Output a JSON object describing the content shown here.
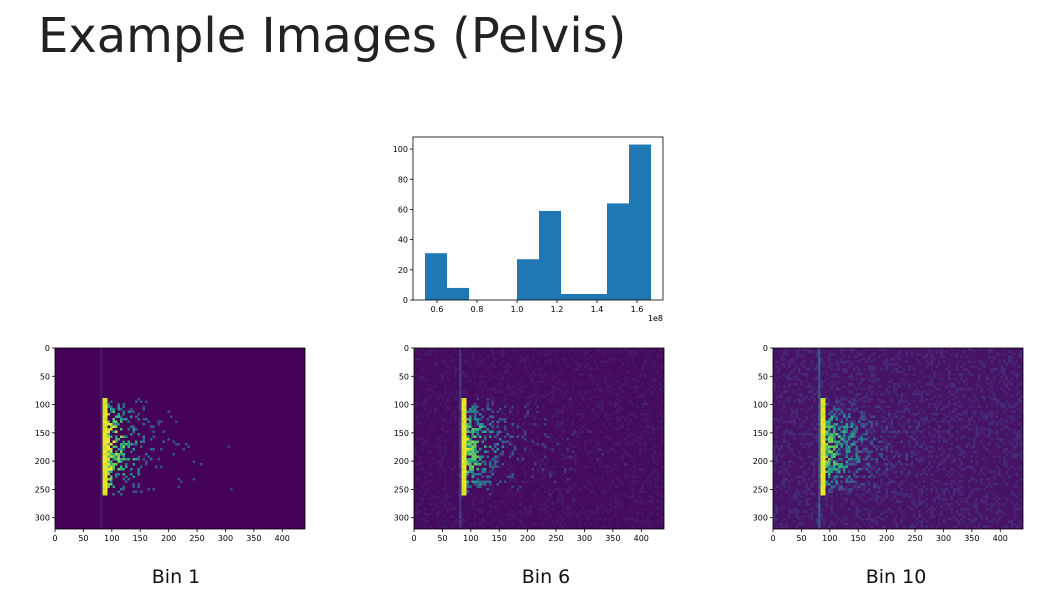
{
  "slide": {
    "title": "Example Images (Pelvis)"
  },
  "colors": {
    "bar": "#1f77b4",
    "heat_bg_1": "#440154",
    "heat_bg_2": "#46095e",
    "heat_bg_3": "#48126a",
    "heat_mid": "#21918c",
    "heat_hi": "#5ec962",
    "heat_peak": "#fde725"
  },
  "chart_data": [
    {
      "type": "bar",
      "title": "",
      "xlabel": "",
      "ylabel": "",
      "x_offset_label": "1e8",
      "x_bin_edges": [
        0.54,
        0.6,
        0.67,
        0.74,
        0.81,
        0.88,
        0.99,
        1.1,
        1.22,
        1.45,
        1.56,
        1.67
      ],
      "bin_left": [
        0.54,
        0.65,
        1.0,
        1.11,
        1.22,
        1.45,
        1.56
      ],
      "bin_right": [
        0.65,
        0.76,
        1.11,
        1.22,
        1.45,
        1.56,
        1.67
      ],
      "values": [
        31,
        8,
        27,
        59,
        4,
        64,
        103
      ],
      "xticks": [
        "0.6",
        "0.8",
        "1.0",
        "1.2",
        "1.4",
        "1.6"
      ],
      "xtick_values": [
        0.6,
        0.8,
        1.0,
        1.2,
        1.4,
        1.6
      ],
      "yticks": [
        "0",
        "20",
        "40",
        "60",
        "80",
        "100"
      ],
      "ytick_values": [
        0,
        20,
        40,
        60,
        80,
        100
      ],
      "xlim": [
        0.48,
        1.73
      ],
      "ylim": [
        0,
        108
      ],
      "grid": false
    },
    {
      "type": "heatmap",
      "caption": "Bin 1",
      "xticks": [
        "0",
        "50",
        "100",
        "150",
        "200",
        "250",
        "300",
        "350",
        "400"
      ],
      "xtick_values": [
        0,
        50,
        100,
        150,
        200,
        250,
        300,
        350,
        400
      ],
      "yticks": [
        "0",
        "50",
        "100",
        "150",
        "200",
        "250",
        "300"
      ],
      "ytick_values": [
        0,
        50,
        100,
        150,
        200,
        250,
        300
      ],
      "xlim": [
        0,
        440
      ],
      "ylim": [
        320,
        0
      ],
      "noise_level": 0.03,
      "spread": 0.6,
      "intensity": 1.0
    },
    {
      "type": "heatmap",
      "caption": "Bin 6",
      "xticks": [
        "0",
        "50",
        "100",
        "150",
        "200",
        "250",
        "300",
        "350",
        "400"
      ],
      "xtick_values": [
        0,
        50,
        100,
        150,
        200,
        250,
        300,
        350,
        400
      ],
      "yticks": [
        "0",
        "50",
        "100",
        "150",
        "200",
        "250",
        "300"
      ],
      "ytick_values": [
        0,
        50,
        100,
        150,
        200,
        250,
        300
      ],
      "xlim": [
        0,
        440
      ],
      "ylim": [
        320,
        0
      ],
      "noise_level": 0.16,
      "spread": 0.8,
      "intensity": 0.7
    },
    {
      "type": "heatmap",
      "caption": "Bin 10",
      "xticks": [
        "0",
        "50",
        "100",
        "150",
        "200",
        "250",
        "300",
        "350",
        "400"
      ],
      "xtick_values": [
        0,
        50,
        100,
        150,
        200,
        250,
        300,
        350,
        400
      ],
      "yticks": [
        "0",
        "50",
        "100",
        "150",
        "200",
        "250",
        "300"
      ],
      "ytick_values": [
        0,
        50,
        100,
        150,
        200,
        250,
        300
      ],
      "xlim": [
        0,
        440
      ],
      "ylim": [
        320,
        0
      ],
      "noise_level": 0.28,
      "spread": 1.0,
      "intensity": 0.6
    }
  ]
}
